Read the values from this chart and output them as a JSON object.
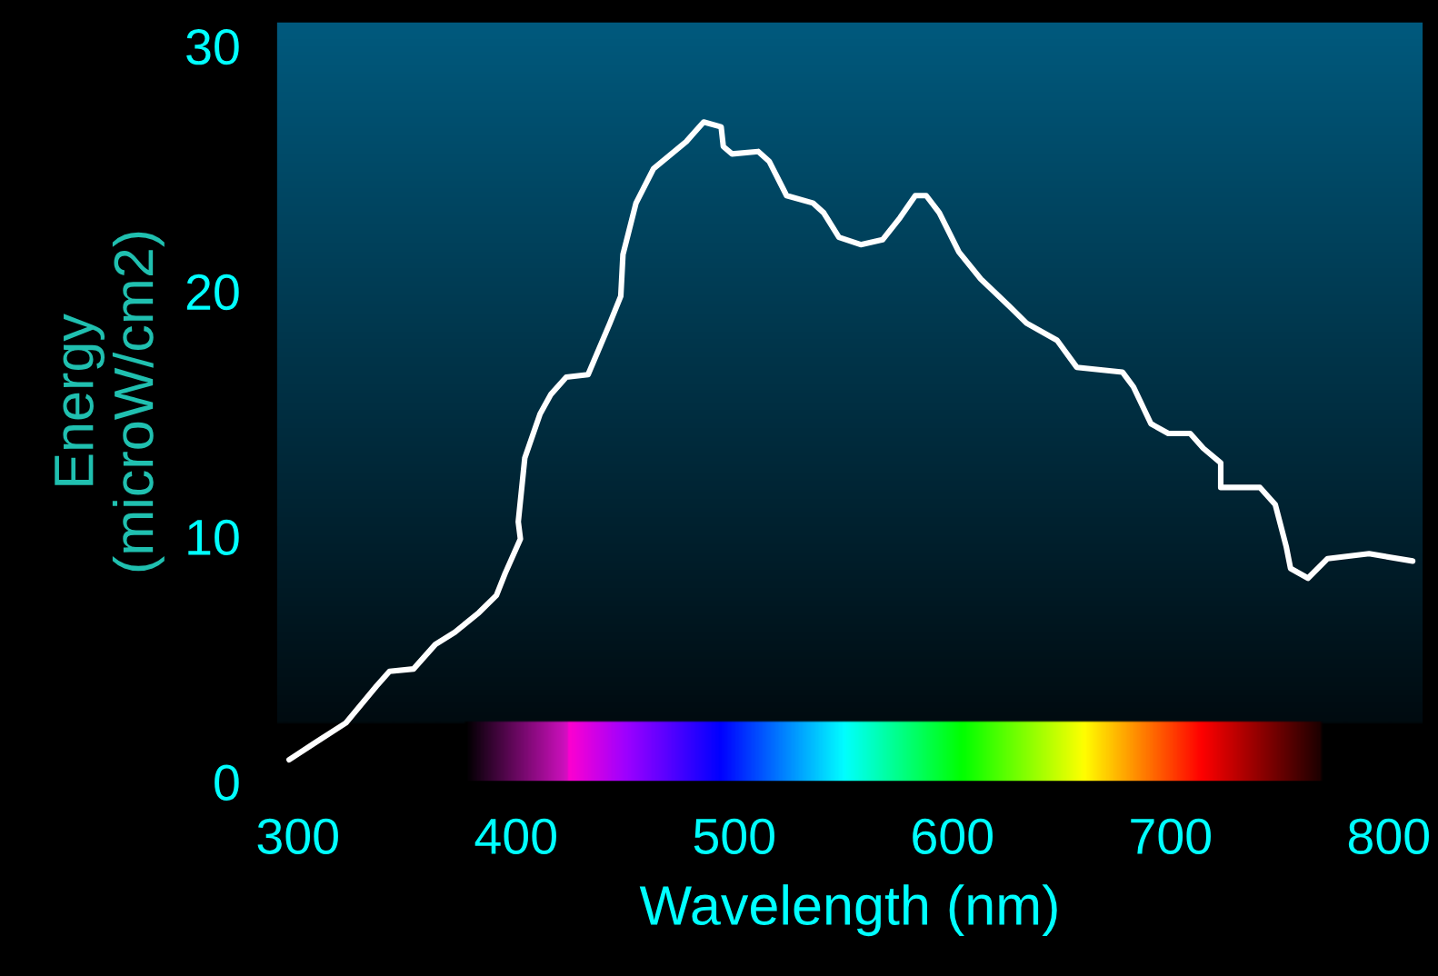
{
  "chart_data": {
    "type": "line",
    "xlabel": "Wavelength (nm)",
    "ylabel": "Energy\n(microW/cm2)",
    "xlim": [
      290,
      816
    ],
    "ylim": [
      0,
      31
    ],
    "xticks": [
      300,
      400,
      500,
      600,
      700,
      800
    ],
    "yticks": [
      0,
      10,
      20,
      30
    ],
    "series": [
      {
        "color": "#ffffff",
        "x": [
          296,
          308,
          322,
          336,
          342,
          353,
          363,
          372,
          383,
          391,
          395,
          402,
          401,
          404,
          411,
          416,
          423,
          433,
          443,
          448,
          449,
          455,
          463,
          478,
          486,
          494,
          495,
          499,
          511,
          516,
          524,
          536,
          541,
          548,
          558,
          568,
          576,
          583,
          588,
          594,
          603,
          613,
          626,
          634,
          648,
          657,
          678,
          683,
          691,
          699,
          709,
          715,
          723,
          723,
          741,
          748,
          753,
          755,
          763,
          772,
          791,
          811
        ],
        "values": [
          0.9,
          1.6,
          2.4,
          3.9,
          4.5,
          4.6,
          5.6,
          6.1,
          6.9,
          7.6,
          8.5,
          9.9,
          10.6,
          13.2,
          15.0,
          15.8,
          16.5,
          16.6,
          18.7,
          19.8,
          21.5,
          23.6,
          25.0,
          26.1,
          26.9,
          26.7,
          25.9,
          25.6,
          25.7,
          25.3,
          23.9,
          23.6,
          23.2,
          22.2,
          21.9,
          22.1,
          23.0,
          23.9,
          23.9,
          23.2,
          21.6,
          20.5,
          19.4,
          18.7,
          18.0,
          16.9,
          16.7,
          16.1,
          14.6,
          14.2,
          14.2,
          13.6,
          13.0,
          12.0,
          12.0,
          11.3,
          9.6,
          8.7,
          8.3,
          9.1,
          9.3,
          9.0
        ]
      }
    ]
  }
}
